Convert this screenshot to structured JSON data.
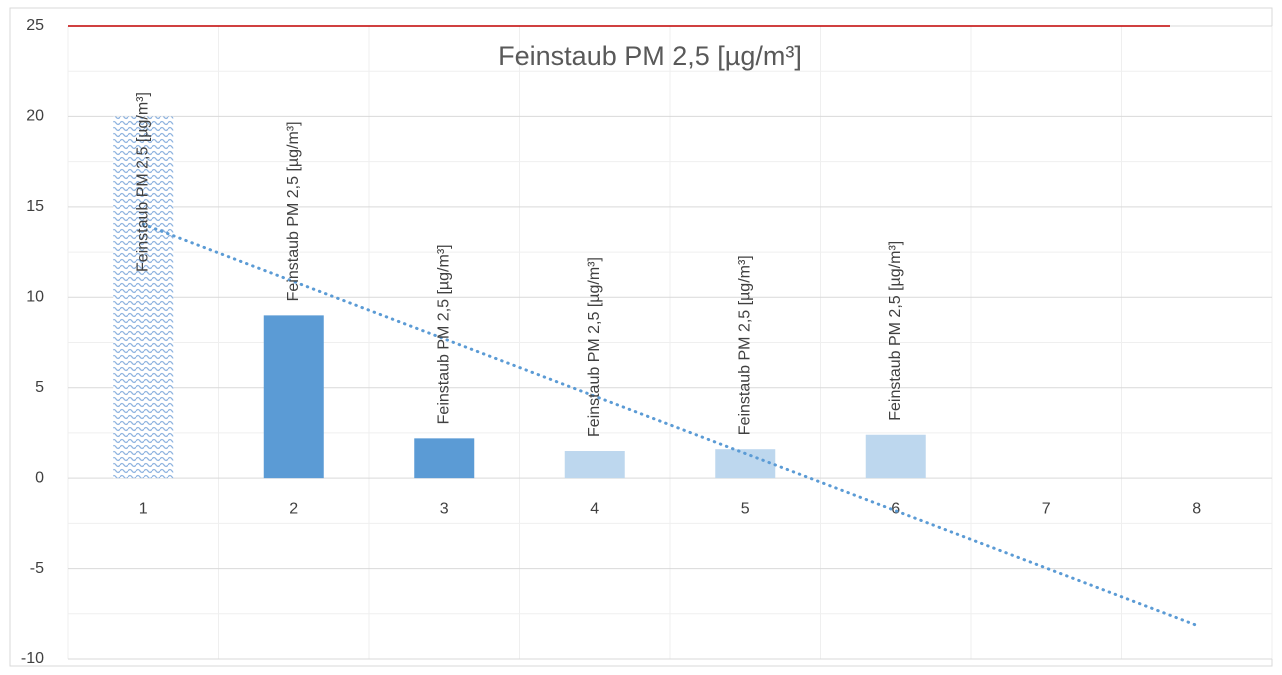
{
  "chart_data": {
    "type": "bar",
    "title": "Feinstaub PM 2,5 [µg/m³]",
    "categories": [
      1,
      2,
      3,
      4,
      5,
      6,
      7,
      8
    ],
    "series": [
      {
        "name": "Feinstaub PM 2,5 [µg/m³]",
        "values": [
          20,
          9,
          2.2,
          1.5,
          1.6,
          2.4,
          null,
          null
        ],
        "colors": [
          "#8fb4e0",
          "#5b9bd5",
          "#5b9bd5",
          "#bdd7ee",
          "#bdd7ee",
          "#bdd7ee",
          null,
          null
        ],
        "patterns": [
          "wave",
          null,
          null,
          null,
          null,
          null,
          null,
          null
        ]
      }
    ],
    "ylim": [
      -10,
      25
    ],
    "yticks": [
      -10,
      -5,
      0,
      5,
      10,
      15,
      20,
      25
    ],
    "grid": true,
    "minor_grid": true,
    "reference_line": {
      "value": 25,
      "color": "#c00000"
    },
    "trendline": {
      "type": "linear",
      "color": "#5b9bd5"
    }
  }
}
